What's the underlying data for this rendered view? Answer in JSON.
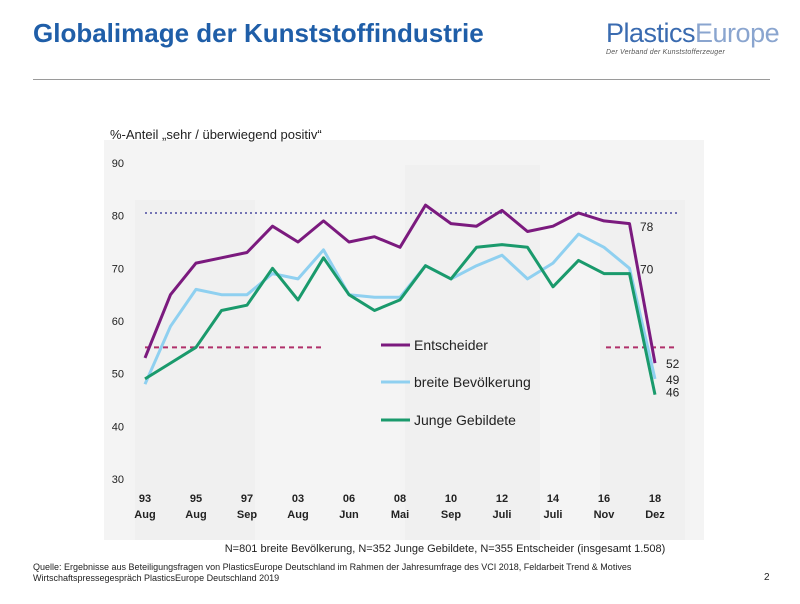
{
  "header": {
    "title": "Globalimage der Kunststoffindustrie",
    "logo_text_1": "Plastics",
    "logo_text_2": "Europe",
    "logo_tagline": "Der Verband der Kunststofferzeuger"
  },
  "chart_data": {
    "type": "line",
    "ylabel": "%-Anteil „sehr / überwiegend positiv“",
    "ylim": [
      30,
      90
    ],
    "yticks": [
      30,
      40,
      50,
      60,
      70,
      80,
      90
    ],
    "x_tick_labels": [
      {
        "year": "93",
        "month": "Aug"
      },
      {
        "year": "95",
        "month": "Aug"
      },
      {
        "year": "97",
        "month": "Sep"
      },
      {
        "year": "03",
        "month": "Aug"
      },
      {
        "year": "06",
        "month": "Jun"
      },
      {
        "year": "08",
        "month": "Mai"
      },
      {
        "year": "10",
        "month": "Sep"
      },
      {
        "year": "12",
        "month": "Juli"
      },
      {
        "year": "14",
        "month": "Juli"
      },
      {
        "year": "16",
        "month": "Nov"
      },
      {
        "year": "18",
        "month": "Dez"
      }
    ],
    "series": [
      {
        "name": "Entscheider",
        "color": "#7b1a7e",
        "values": [
          53,
          65,
          71,
          72,
          73,
          78,
          75,
          79,
          75,
          76,
          74,
          82,
          78.5,
          78,
          81,
          77,
          78,
          80.5,
          79,
          78.5,
          52
        ],
        "end_label": "52",
        "label_near_end": "78"
      },
      {
        "name": "breite Bevölkerung",
        "color": "#8fd0f0",
        "values": [
          48,
          59,
          66,
          65,
          65,
          69,
          68,
          73.5,
          65,
          64.5,
          64.5,
          70.5,
          68,
          70.5,
          72.5,
          68,
          71,
          76.5,
          74,
          70,
          49
        ],
        "end_label": "49",
        "label_near_end": "70"
      },
      {
        "name": "Junge Gebildete",
        "color": "#1a9a6c",
        "values": [
          49,
          52,
          55,
          62,
          63,
          70,
          64,
          72,
          65,
          62,
          64,
          70.5,
          68,
          74,
          74.5,
          74,
          66.5,
          71.5,
          69,
          69,
          46
        ],
        "end_label": "46"
      }
    ],
    "reference_lines": [
      {
        "value": 80.5,
        "color": "#2b2b8f",
        "style": "dotted"
      },
      {
        "value": 55,
        "color": "#b0306a",
        "style": "dashed"
      }
    ],
    "note": "N=801 breite Bevölkerung, N=352 Junge Gebildete, N=355 Entscheider (insgesamt 1.508)"
  },
  "footer": {
    "source_line_1": "Quelle: Ergebnisse aus Beteiligungsfragen von PlasticsEurope Deutschland im Rahmen der Jahresumfrage des VCI 2018, Feldarbeit Trend & Motives",
    "source_line_2": "Wirtschaftspressegespräch PlasticsEurope Deutschland 2019",
    "page_number": "2"
  }
}
